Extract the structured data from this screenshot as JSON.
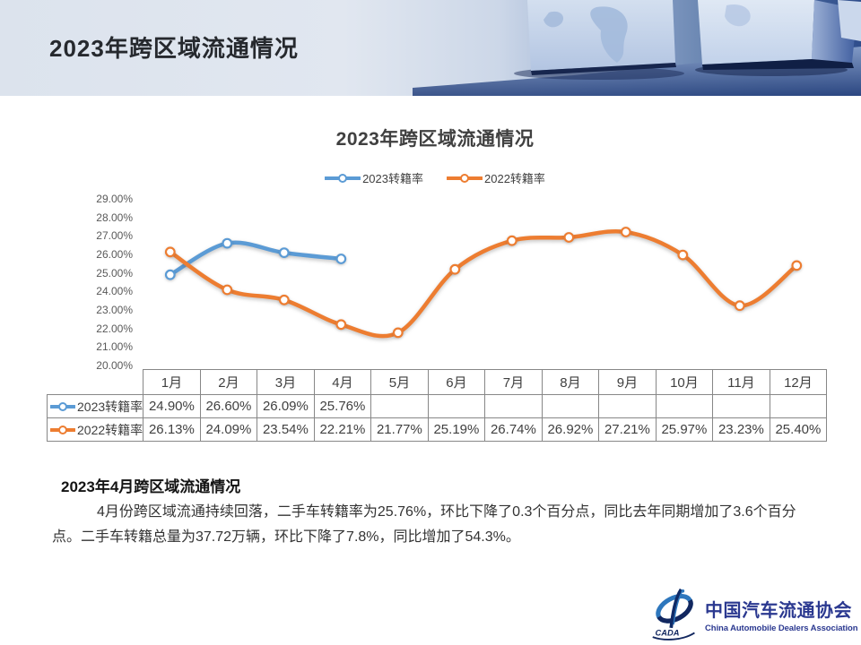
{
  "header": {
    "title": "2023年跨区域流通情况"
  },
  "chart": {
    "title": "2023年跨区域流通情况"
  },
  "chart_data": {
    "type": "line",
    "smooth": true,
    "grid": false,
    "legend_position": "top",
    "data_table": true,
    "categories": [
      "1月",
      "2月",
      "3月",
      "4月",
      "5月",
      "6月",
      "7月",
      "8月",
      "9月",
      "10月",
      "11月",
      "12月"
    ],
    "series": [
      {
        "name": "2023转籍率",
        "color": "#5B9BD5",
        "values": [
          24.9,
          26.6,
          26.09,
          25.76,
          null,
          null,
          null,
          null,
          null,
          null,
          null,
          null
        ],
        "labels": [
          "24.90%",
          "26.60%",
          "26.09%",
          "25.76%",
          "",
          "",
          "",
          "",
          "",
          "",
          "",
          ""
        ]
      },
      {
        "name": "2022转籍率",
        "color": "#ED7D31",
        "values": [
          26.13,
          24.09,
          23.54,
          22.21,
          21.77,
          25.19,
          26.74,
          26.92,
          27.21,
          25.97,
          23.23,
          25.4
        ],
        "labels": [
          "26.13%",
          "24.09%",
          "23.54%",
          "22.21%",
          "21.77%",
          "25.19%",
          "26.74%",
          "26.92%",
          "27.21%",
          "25.97%",
          "23.23%",
          "25.40%"
        ]
      }
    ],
    "ylim": [
      20,
      29
    ],
    "ytick_labels": [
      "29.00%",
      "28.00%",
      "27.00%",
      "26.00%",
      "25.00%",
      "24.00%",
      "23.00%",
      "22.00%",
      "21.00%",
      "20.00%"
    ],
    "xlabel": "",
    "ylabel": ""
  },
  "summary": {
    "title": "2023年4月跨区域流通情况",
    "body": "4月份跨区域流通持续回落，二手车转籍率为25.76%，环比下降了0.3个百分点，同比去年同期增加了3.6个百分点。二手车转籍总量为37.72万辆，环比下降了7.8%，同比增加了54.3%。"
  },
  "footer": {
    "org_cn": "中国汽车流通协会",
    "org_en": "China Automobile Dealers Association",
    "logo_abbr": "CADA",
    "logo_color": "#2b3990"
  }
}
